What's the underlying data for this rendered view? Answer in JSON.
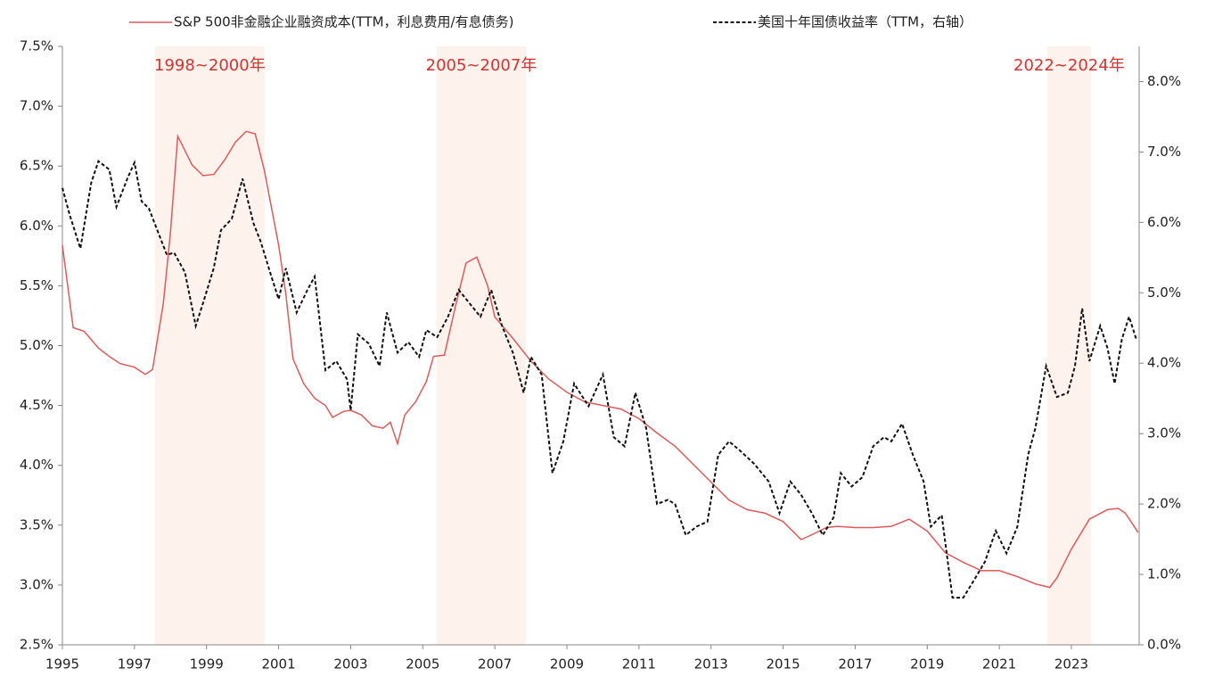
{
  "chart_data": {
    "type": "line",
    "xlim": [
      1995,
      2024.88
    ],
    "xticks": [
      1995,
      1997,
      1999,
      2001,
      2003,
      2005,
      2007,
      2009,
      2011,
      2013,
      2015,
      2017,
      2019,
      2021,
      2023
    ],
    "ylim": [
      2.5,
      7.5
    ],
    "yticks": [
      {
        "value": 2.5,
        "label": "2.5%"
      },
      {
        "value": 3.0,
        "label": "3.0%"
      },
      {
        "value": 3.5,
        "label": "3.5%"
      },
      {
        "value": 4.0,
        "label": "4.0%"
      },
      {
        "value": 4.5,
        "label": "4.5%"
      },
      {
        "value": 5.0,
        "label": "5.0%"
      },
      {
        "value": 5.5,
        "label": "5.5%"
      },
      {
        "value": 6.0,
        "label": "6.0%"
      },
      {
        "value": 6.5,
        "label": "6.5%"
      },
      {
        "value": 7.0,
        "label": "7.0%"
      },
      {
        "value": 7.5,
        "label": "7.5%"
      }
    ],
    "y2lim": [
      0,
      8.5
    ],
    "y2ticks": [
      {
        "value": 0,
        "label": "0.0%"
      },
      {
        "value": 1,
        "label": "1.0%"
      },
      {
        "value": 2,
        "label": "2.0%"
      },
      {
        "value": 3,
        "label": "3.0%"
      },
      {
        "value": 4,
        "label": "4.0%"
      },
      {
        "value": 5,
        "label": "5.0%"
      },
      {
        "value": 6,
        "label": "6.0%"
      },
      {
        "value": 7,
        "label": "7.0%"
      },
      {
        "value": 8,
        "label": "8.0%"
      }
    ],
    "grid": false,
    "shaded_ranges": [
      {
        "label": "1998~2000年",
        "start": 1997.57,
        "end": 2000.61
      },
      {
        "label": "2005~2007年",
        "start": 2005.39,
        "end": 2007.86
      },
      {
        "label": "2022~2024年",
        "start": 2022.33,
        "end": 2023.54
      }
    ],
    "shade_color": "#fdf2ec",
    "series": [
      {
        "name": "S&P 500非金融企业融资成本(TTM，利息费用/有息债务)",
        "color": "#e05a5a",
        "dash": false,
        "axis": "y",
        "x": [
          1995.0,
          1995.3,
          1995.6,
          1996.0,
          1996.3,
          1996.6,
          1997.0,
          1997.3,
          1997.5,
          1997.8,
          1998.0,
          1998.2,
          1998.6,
          1998.9,
          1999.2,
          1999.5,
          1999.8,
          2000.1,
          2000.35,
          2000.6,
          2001.0,
          2001.2,
          2001.4,
          2001.7,
          2002.0,
          2002.3,
          2002.5,
          2002.8,
          2003.0,
          2003.3,
          2003.6,
          2003.9,
          2004.1,
          2004.3,
          2004.5,
          2004.8,
          2005.1,
          2005.3,
          2005.6,
          2005.9,
          2006.2,
          2006.5,
          2006.8,
          2007.0,
          2007.5,
          2008.0,
          2008.5,
          2009.0,
          2009.5,
          2010.0,
          2010.5,
          2011.0,
          2011.5,
          2012.0,
          2012.5,
          2013.0,
          2013.5,
          2014.0,
          2014.5,
          2015.0,
          2015.5,
          2015.8,
          2016.2,
          2016.5,
          2017.0,
          2017.5,
          2018.0,
          2018.5,
          2019.0,
          2019.5,
          2020.0,
          2020.5,
          2021.0,
          2021.5,
          2022.0,
          2022.4,
          2022.6,
          2023.0,
          2023.5,
          2024.0,
          2024.3,
          2024.5,
          2024.85
        ],
        "values": [
          5.84,
          5.15,
          5.12,
          4.98,
          4.91,
          4.85,
          4.82,
          4.76,
          4.8,
          5.35,
          5.95,
          6.75,
          6.51,
          6.42,
          6.43,
          6.55,
          6.7,
          6.79,
          6.77,
          6.47,
          5.84,
          5.43,
          4.89,
          4.68,
          4.56,
          4.5,
          4.4,
          4.45,
          4.46,
          4.42,
          4.33,
          4.31,
          4.36,
          4.18,
          4.42,
          4.53,
          4.7,
          4.91,
          4.92,
          5.32,
          5.69,
          5.74,
          5.5,
          5.24,
          5.06,
          4.87,
          4.72,
          4.61,
          4.53,
          4.5,
          4.47,
          4.39,
          4.27,
          4.16,
          4.01,
          3.86,
          3.71,
          3.63,
          3.6,
          3.53,
          3.38,
          3.42,
          3.48,
          3.49,
          3.48,
          3.48,
          3.49,
          3.55,
          3.45,
          3.27,
          3.19,
          3.12,
          3.12,
          3.07,
          3.01,
          2.98,
          3.06,
          3.3,
          3.55,
          3.63,
          3.64,
          3.6,
          3.44
        ]
      },
      {
        "name": "美国十年国债收益率（TTM，右轴）",
        "color": "#111111",
        "dash": true,
        "axis": "y2",
        "x": [
          1995.0,
          1995.2,
          1995.5,
          1995.8,
          1996.0,
          1996.3,
          1996.5,
          1996.8,
          1997.0,
          1997.2,
          1997.4,
          1997.7,
          1997.9,
          1998.1,
          1998.4,
          1998.7,
          1998.9,
          1999.2,
          1999.4,
          1999.7,
          2000.0,
          2000.3,
          2000.5,
          2000.8,
          2001.0,
          2001.2,
          2001.5,
          2001.8,
          2002.0,
          2002.3,
          2002.6,
          2002.9,
          2003.0,
          2003.2,
          2003.5,
          2003.8,
          2004.0,
          2004.3,
          2004.6,
          2004.9,
          2005.1,
          2005.4,
          2005.7,
          2006.0,
          2006.3,
          2006.6,
          2006.9,
          2007.2,
          2007.5,
          2007.8,
          2008.0,
          2008.3,
          2008.6,
          2008.9,
          2009.2,
          2009.6,
          2010.0,
          2010.3,
          2010.6,
          2010.9,
          2011.2,
          2011.5,
          2011.8,
          2012.0,
          2012.3,
          2012.6,
          2012.9,
          2013.2,
          2013.5,
          2013.8,
          2014.2,
          2014.6,
          2014.9,
          2015.2,
          2015.5,
          2015.8,
          2016.1,
          2016.4,
          2016.6,
          2016.9,
          2017.2,
          2017.5,
          2017.8,
          2018.0,
          2018.3,
          2018.6,
          2018.9,
          2019.1,
          2019.4,
          2019.7,
          2020.0,
          2020.3,
          2020.6,
          2020.9,
          2021.2,
          2021.5,
          2021.8,
          2022.0,
          2022.3,
          2022.6,
          2022.9,
          2023.1,
          2023.3,
          2023.5,
          2023.8,
          2024.0,
          2024.2,
          2024.4,
          2024.6,
          2024.8
        ],
        "values": [
          6.49,
          6.11,
          5.63,
          6.56,
          6.87,
          6.75,
          6.22,
          6.62,
          6.85,
          6.3,
          6.2,
          5.8,
          5.54,
          5.57,
          5.29,
          4.53,
          4.85,
          5.35,
          5.89,
          6.05,
          6.62,
          5.99,
          5.73,
          5.23,
          4.91,
          5.35,
          4.72,
          5.04,
          5.23,
          3.9,
          4.03,
          3.77,
          3.33,
          4.41,
          4.28,
          3.96,
          4.72,
          4.15,
          4.3,
          4.09,
          4.47,
          4.37,
          4.66,
          5.04,
          4.85,
          4.66,
          5.04,
          4.53,
          4.15,
          3.58,
          4.09,
          3.84,
          2.44,
          2.89,
          3.71,
          3.39,
          3.84,
          2.95,
          2.82,
          3.58,
          3.08,
          2.0,
          2.06,
          2.0,
          1.56,
          1.68,
          1.75,
          2.7,
          2.89,
          2.76,
          2.57,
          2.32,
          1.87,
          2.32,
          2.13,
          1.87,
          1.56,
          1.81,
          2.44,
          2.25,
          2.38,
          2.82,
          2.95,
          2.89,
          3.14,
          2.7,
          2.32,
          1.68,
          1.84,
          0.67,
          0.67,
          0.92,
          1.18,
          1.62,
          1.3,
          1.68,
          2.7,
          3.08,
          3.96,
          3.52,
          3.58,
          3.96,
          4.78,
          4.03,
          4.53,
          4.22,
          3.71,
          4.34,
          4.66,
          4.34
        ]
      }
    ]
  }
}
